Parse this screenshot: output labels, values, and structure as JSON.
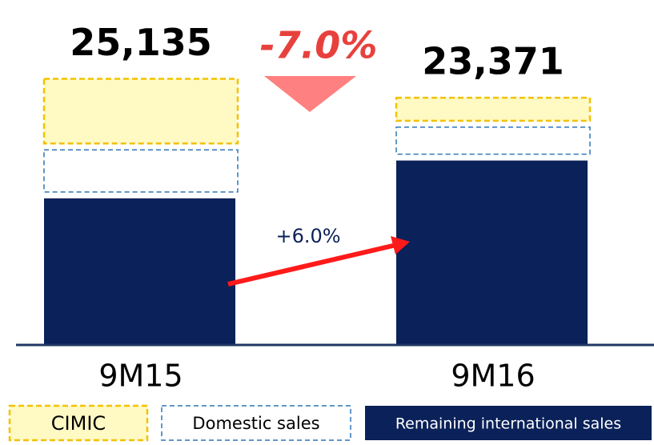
{
  "chart_data": {
    "type": "stacked_bar",
    "categories": [
      "9M15",
      "9M16"
    ],
    "series": [
      {
        "name": "Remaining international sales",
        "color": "#0b2159",
        "values": [
          13950,
          17490
        ]
      },
      {
        "name": "Domestic sales",
        "color": "#2e75b6",
        "values": [
          4540,
          3125
        ]
      },
      {
        "name": "CIMIC",
        "color": "#f2c200",
        "values": [
          6645,
          2756
        ]
      }
    ],
    "totals": [
      25135,
      23371
    ],
    "total_labels": [
      "25,135",
      "23,371"
    ],
    "annotations": [
      "-7.0%",
      "+6.0%"
    ],
    "ylim": [
      0,
      26000
    ]
  }
}
